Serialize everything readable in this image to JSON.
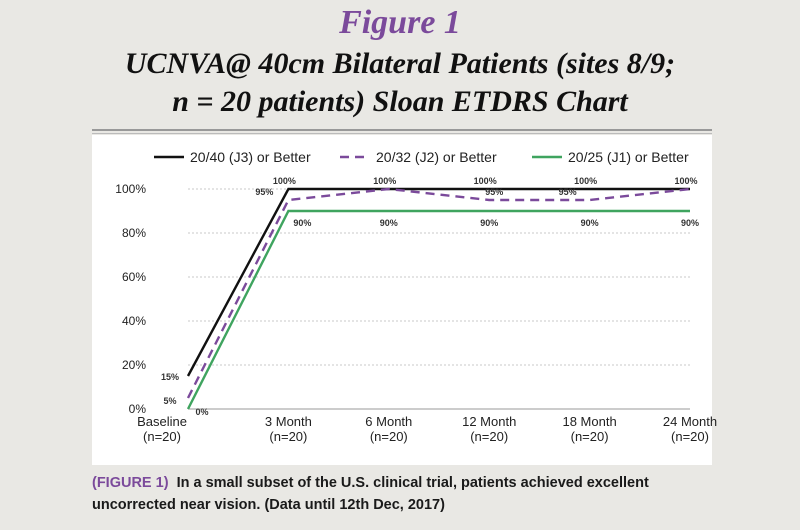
{
  "figure_label": "Figure 1",
  "title_line1": "UCNVA@ 40cm Bilateral Patients (sites 8/9;",
  "title_line2": "n = 20 patients) Sloan ETDRS Chart",
  "caption_tag": "(FIGURE 1)",
  "caption_text": "In a small subset of the U.S. clinical trial, patients achieved excellent uncorrected near vision. (Data until 12th Dec, 2017)",
  "chart_data": {
    "type": "line",
    "categories": [
      [
        "Baseline",
        "(n=20)"
      ],
      [
        "3 Month",
        "(n=20)"
      ],
      [
        "6 Month",
        "(n=20)"
      ],
      [
        "12 Month",
        "(n=20)"
      ],
      [
        "18 Month",
        "(n=20)"
      ],
      [
        "24 Month",
        "(n=20)"
      ]
    ],
    "ylim": [
      0,
      100
    ],
    "yticks": [
      "0%",
      "20%",
      "40%",
      "60%",
      "80%",
      "100%"
    ],
    "grid": "horizontal dotted",
    "legend_position": "top",
    "series": [
      {
        "name": "20/40 (J3) or Better",
        "values": [
          15,
          100,
          100,
          100,
          100,
          100
        ],
        "labels": [
          "15%",
          "100%",
          "100%",
          "100%",
          "100%",
          "100%"
        ],
        "color": "#111111",
        "dash": "solid"
      },
      {
        "name": "20/32 (J2) or Better",
        "values": [
          5,
          95,
          100,
          95,
          95,
          100
        ],
        "labels": [
          "5%",
          "95%",
          "",
          "95%",
          "95%",
          ""
        ],
        "color": "#7b4a9b",
        "dash": "dashed"
      },
      {
        "name": "20/25 (J1) or Better",
        "values": [
          0,
          90,
          90,
          90,
          90,
          90
        ],
        "labels": [
          "0%",
          "90%",
          "90%",
          "90%",
          "90%",
          "90%"
        ],
        "color": "#3fa45f",
        "dash": "solid"
      }
    ]
  }
}
